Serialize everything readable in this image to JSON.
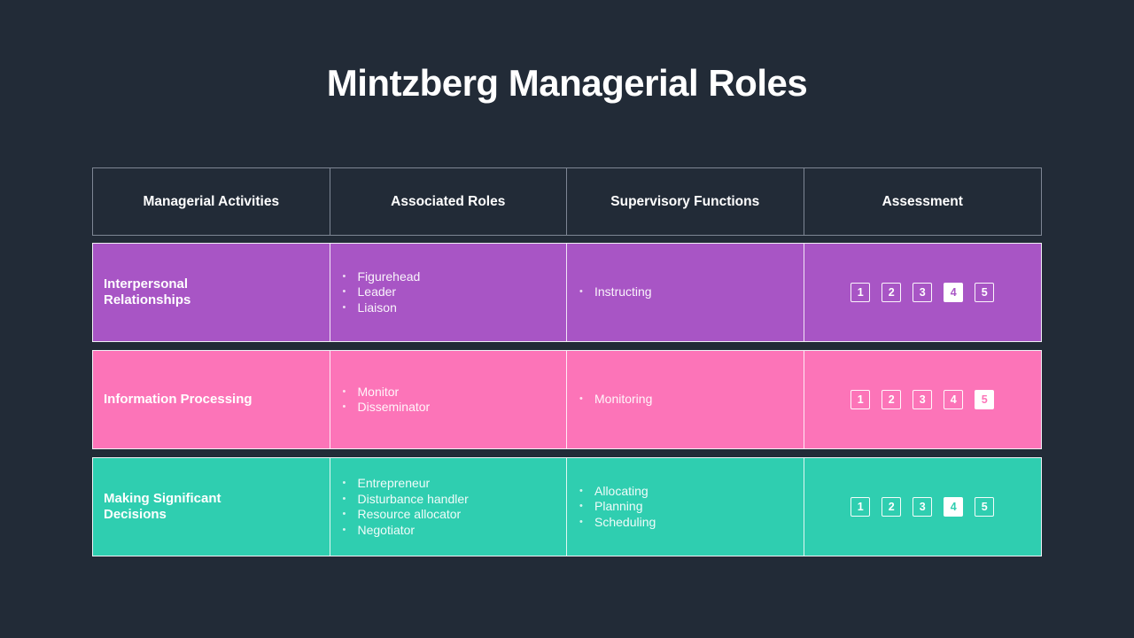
{
  "colors": {
    "background": "#222B37",
    "header_border": "#7E8694",
    "row_border": "#F0F0F5",
    "text": "#FFFFFF",
    "row_purple": "#A855C5",
    "row_pink": "#FC74B8",
    "row_teal": "#2FCEB0"
  },
  "slide": {
    "title": "Mintzberg Managerial Roles"
  },
  "table": {
    "headers": [
      "Managerial Activities",
      "Associated Roles",
      "Supervisory Functions",
      "Assessment"
    ],
    "rows": [
      {
        "activity": "Interpersonal Relationships",
        "roles": [
          "Figurehead",
          "Leader",
          "Liaison"
        ],
        "functions": [
          "Instructing"
        ],
        "scale": [
          "1",
          "2",
          "3",
          "4",
          "5"
        ],
        "selected": "4",
        "color": "#A855C5"
      },
      {
        "activity": "Information Processing",
        "roles": [
          "Monitor",
          "Disseminator"
        ],
        "functions": [
          "Monitoring"
        ],
        "scale": [
          "1",
          "2",
          "3",
          "4",
          "5"
        ],
        "selected": "5",
        "color": "#FC74B8"
      },
      {
        "activity": "Making Significant Decisions",
        "roles": [
          "Entrepreneur",
          "Disturbance handler",
          "Resource allocator",
          "Negotiator"
        ],
        "functions": [
          "Allocating",
          "Planning",
          "Scheduling"
        ],
        "scale": [
          "1",
          "2",
          "3",
          "4",
          "5"
        ],
        "selected": "4",
        "color": "#2FCEB0"
      }
    ]
  }
}
